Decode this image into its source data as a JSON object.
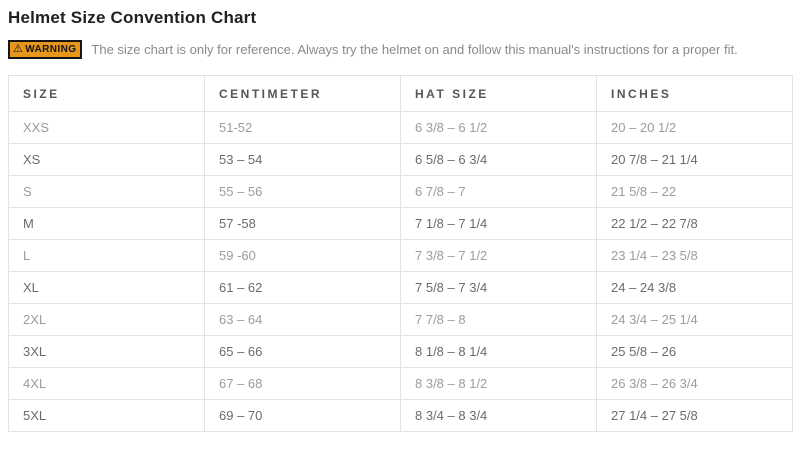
{
  "page": {
    "title": "Helmet Size Convention Chart"
  },
  "warning": {
    "icon": "warning-triangle-icon",
    "badge_label": "WARNING",
    "text": "The size chart is only for reference. Always try the helmet on and follow this manual's instructions for a proper fit."
  },
  "table": {
    "headers": [
      "SIZE",
      "CENTIMETER",
      "HAT SIZE",
      "INCHES"
    ],
    "rows": [
      {
        "size": "XXS",
        "centimeter": "51-52",
        "hat_size": "6 3/8 – 6 1/2",
        "inches": "20 – 20 1/2"
      },
      {
        "size": "XS",
        "centimeter": "53 – 54",
        "hat_size": "6 5/8 – 6 3/4",
        "inches": "20 7/8 – 21 1/4"
      },
      {
        "size": "S",
        "centimeter": "55 – 56",
        "hat_size": "6 7/8 – 7",
        "inches": "21 5/8 – 22"
      },
      {
        "size": "M",
        "centimeter": "57 -58",
        "hat_size": "7 1/8 – 7 1/4",
        "inches": "22 1/2 – 22 7/8"
      },
      {
        "size": "L",
        "centimeter": "59 -60",
        "hat_size": "7 3/8 – 7 1/2",
        "inches": "23 1/4 – 23 5/8"
      },
      {
        "size": "XL",
        "centimeter": "61 – 62",
        "hat_size": "7 5/8 – 7 3/4",
        "inches": "24 – 24 3/8"
      },
      {
        "size": "2XL",
        "centimeter": "63 – 64",
        "hat_size": "7 7/8 – 8",
        "inches": "24 3/4 – 25 1/4"
      },
      {
        "size": "3XL",
        "centimeter": "65 – 66",
        "hat_size": "8 1/8 – 8 1/4",
        "inches": "25 5/8 – 26"
      },
      {
        "size": "4XL",
        "centimeter": "67 – 68",
        "hat_size": "8 3/8 – 8 1/2",
        "inches": "26 3/8 – 26 3/4"
      },
      {
        "size": "5XL",
        "centimeter": "69 – 70",
        "hat_size": "8 3/4 – 8 3/4",
        "inches": "27 1/4 – 27 5/8"
      }
    ]
  },
  "theme": {
    "warning_badge_bg": "#e8951c",
    "warning_badge_border": "#161616",
    "warning_text_color": "#8a8a8a",
    "table_border": "#e2e2e2",
    "header_text": "#565656",
    "row_text_light": "#9c9c9c",
    "row_text_dark": "#6b6b6b",
    "title_text": "#212121",
    "background": "#ffffff"
  }
}
